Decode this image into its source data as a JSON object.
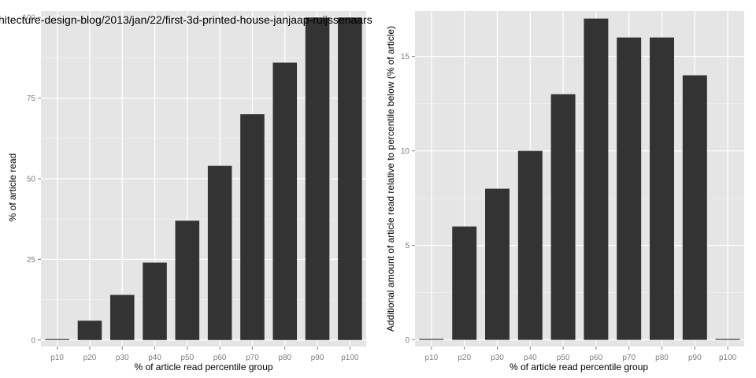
{
  "chart_data": [
    {
      "type": "bar",
      "title": "hitecture-design-blog/2013/jan/22/first-3d-printed-house-janjaap-ruijssenaars",
      "xlabel": "% of article read percentile group",
      "ylabel": "% of article read",
      "categories": [
        "p10",
        "p20",
        "p30",
        "p40",
        "p50",
        "p60",
        "p70",
        "p80",
        "p90",
        "p100"
      ],
      "values": [
        0,
        6,
        14,
        24,
        37,
        54,
        70,
        86,
        100,
        100
      ],
      "ylim": [
        -2,
        102
      ],
      "yticks": [
        0,
        25,
        50,
        75,
        100
      ],
      "grid": true,
      "bar_color": "#333333",
      "panel_color": "#e5e5e5"
    },
    {
      "type": "bar",
      "title": "",
      "xlabel": "% of article read percentile group",
      "ylabel": "Additional amount of article read relative to percentile below (% of article)",
      "categories": [
        "p10",
        "p20",
        "p30",
        "p40",
        "p50",
        "p60",
        "p70",
        "p80",
        "p90",
        "p100"
      ],
      "values": [
        0,
        6,
        8,
        10,
        13,
        17,
        16,
        16,
        14,
        0
      ],
      "ylim": [
        -0.35,
        17.4
      ],
      "yticks": [
        0,
        5,
        10,
        15
      ],
      "grid": true,
      "bar_color": "#333333",
      "panel_color": "#e5e5e5"
    }
  ]
}
